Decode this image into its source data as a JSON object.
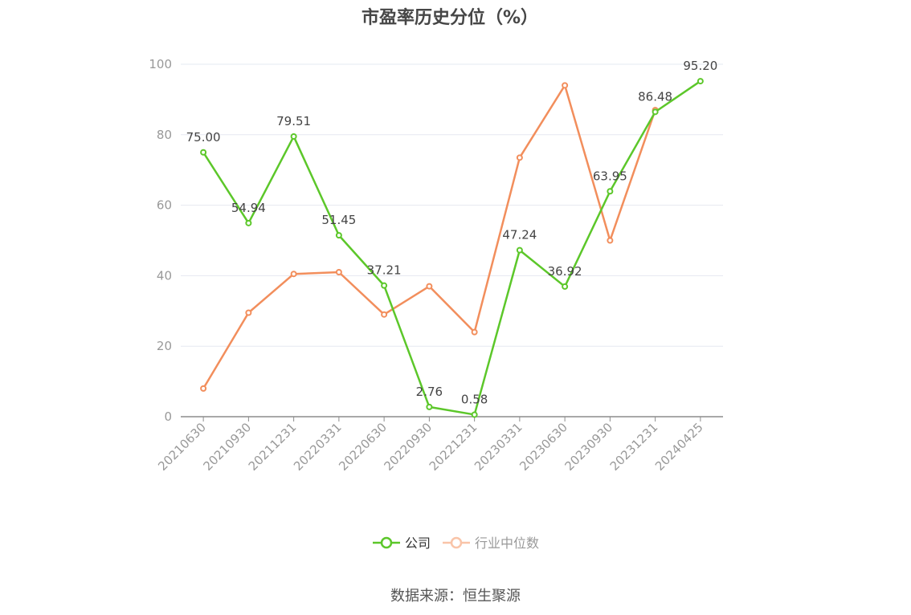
{
  "chart_data": {
    "type": "line",
    "title": "市盈率历史分位（%）",
    "categories": [
      "20210630",
      "20210930",
      "20211231",
      "20220331",
      "20220630",
      "20220930",
      "20221231",
      "20230331",
      "20230630",
      "20230930",
      "20231231",
      "20240425"
    ],
    "series": [
      {
        "name": "公司",
        "color": "#5cc72a",
        "values": [
          75.0,
          54.94,
          79.51,
          51.45,
          37.21,
          2.76,
          0.58,
          47.24,
          36.92,
          63.95,
          86.48,
          95.2
        ],
        "labels": [
          "75.00",
          "54.94",
          "79.51",
          "51.45",
          "37.21",
          "2.76",
          "0.58",
          "47.24",
          "36.92",
          "63.95",
          "86.48",
          "95.20"
        ]
      },
      {
        "name": "行业中位数",
        "color": "#f28e5c",
        "values": [
          8,
          29.5,
          40.5,
          41,
          29,
          37,
          24,
          73.5,
          94,
          50,
          87,
          null
        ]
      }
    ],
    "xlabel": "",
    "ylabel": "",
    "ylim": [
      0,
      100
    ],
    "yticks": [
      "0",
      "20",
      "40",
      "60",
      "80",
      "100"
    ],
    "grid": true,
    "legend_position": "bottom-center"
  },
  "source": "数据来源：恒生聚源"
}
